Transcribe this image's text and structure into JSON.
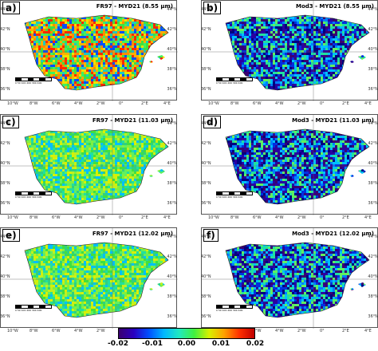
{
  "panels": [
    {
      "label": "a)",
      "title": "FR97 - MYD21 (8.55 µm)",
      "palette": "red-mix"
    },
    {
      "label": "b)",
      "title": "Mod3 - MYD21 (8.55 µm)",
      "palette": "blue-mix"
    },
    {
      "label": "c)",
      "title": "FR97 - MYD21 (11.03 µm)",
      "palette": "green-mix"
    },
    {
      "label": "d)",
      "title": "Mod3 - MYD21 (11.03 µm)",
      "palette": "blue-mix"
    },
    {
      "label": "e)",
      "title": "FR97 - MYD21 (12.02 µm)",
      "palette": "green-mix"
    },
    {
      "label": "f)",
      "title": "Mod3 - MYD21 (12.02 µm)",
      "palette": "blue-mix"
    }
  ],
  "lat_labels": [
    "44°N",
    "42°N",
    "40°N",
    "38°N",
    "36°N"
  ],
  "lon_labels": [
    "10°W",
    "8°W",
    "6°W",
    "4°W",
    "2°W",
    "0°",
    "2°E",
    "4°E"
  ],
  "scale_ticks": "0  50  100  200  300  400",
  "colorbar": {
    "ticks": [
      "-0.02",
      "-0.01",
      "0.00",
      "0.01",
      "0.02"
    ],
    "colors": [
      "#3a0070",
      "#2a00c0",
      "#0050ff",
      "#00b8ff",
      "#20e8c0",
      "#40f040",
      "#d8f000",
      "#ffa000",
      "#ff3000",
      "#c00000"
    ]
  }
}
